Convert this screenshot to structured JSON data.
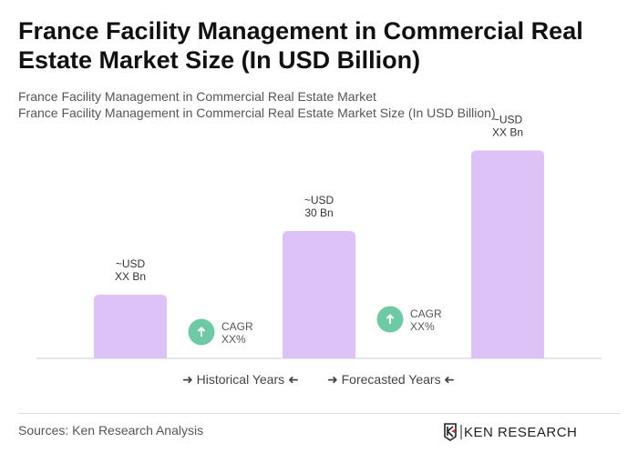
{
  "header": {
    "title": "France Facility Management in Commercial Real Estate Market Size (In USD Billion)",
    "subtitle1": "France Facility Management in Commercial Real Estate Market",
    "subtitle2": "France Facility Management in Commercial Real Estate Market Size (In USD Billion)"
  },
  "chart_data": {
    "type": "bar",
    "values": [
      15,
      30,
      49
    ],
    "labels": [
      [
        "~USD",
        "XX Bn"
      ],
      [
        "~USD",
        "30 Bn"
      ],
      [
        "~USD",
        "XX Bn"
      ]
    ],
    "cagr": [
      {
        "line1": "CAGR",
        "line2": "XX%"
      },
      {
        "line1": "CAGR",
        "line2": "XX%"
      }
    ],
    "bar_color": "#dcc2f7",
    "cagr_color": "#6fc9a5",
    "legend": [
      "Historical Years",
      "Forecasted Years"
    ],
    "legend_placement": "bottom"
  },
  "legend": {
    "historical": "Historical Years",
    "forecasted": "Forecasted Years"
  },
  "footer": {
    "source": "Sources: Ken Research Analysis",
    "logo_text": "KEN RESEARCH"
  }
}
